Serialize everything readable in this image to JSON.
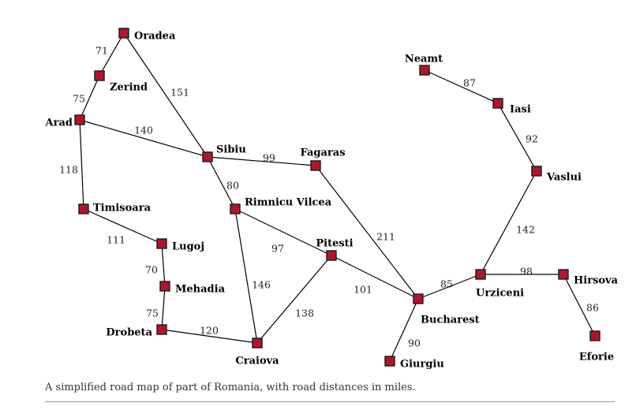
{
  "caption": "A simplified road map of part of Romania, with road distances in miles.",
  "colors": {
    "city": "#b0152a",
    "road": "#000000"
  },
  "cities": [
    {
      "id": "oradea",
      "name": "Oradea"
    },
    {
      "id": "zerind",
      "name": "Zerind"
    },
    {
      "id": "arad",
      "name": "Arad"
    },
    {
      "id": "timisoara",
      "name": "Timisoara"
    },
    {
      "id": "lugoj",
      "name": "Lugoj"
    },
    {
      "id": "mehadia",
      "name": "Mehadia"
    },
    {
      "id": "drobeta",
      "name": "Drobeta"
    },
    {
      "id": "craiova",
      "name": "Craiova"
    },
    {
      "id": "sibiu",
      "name": "Sibiu"
    },
    {
      "id": "rimnicu-vilcea",
      "name": "Rimnicu Vilcea"
    },
    {
      "id": "fagaras",
      "name": "Fagaras"
    },
    {
      "id": "pitesti",
      "name": "Pitesti"
    },
    {
      "id": "bucharest",
      "name": "Bucharest"
    },
    {
      "id": "giurgiu",
      "name": "Giurgiu"
    },
    {
      "id": "urziceni",
      "name": "Urziceni"
    },
    {
      "id": "hirsova",
      "name": "Hirsova"
    },
    {
      "id": "eforie",
      "name": "Eforie"
    },
    {
      "id": "vaslui",
      "name": "Vaslui"
    },
    {
      "id": "iasi",
      "name": "Iasi"
    },
    {
      "id": "neamt",
      "name": "Neamt"
    }
  ],
  "roads": [
    {
      "from": "Oradea",
      "to": "Zerind",
      "distance": "71"
    },
    {
      "from": "Zerind",
      "to": "Arad",
      "distance": "75"
    },
    {
      "from": "Oradea",
      "to": "Sibiu",
      "distance": "151"
    },
    {
      "from": "Arad",
      "to": "Sibiu",
      "distance": "140"
    },
    {
      "from": "Arad",
      "to": "Timisoara",
      "distance": "118"
    },
    {
      "from": "Timisoara",
      "to": "Lugoj",
      "distance": "111"
    },
    {
      "from": "Lugoj",
      "to": "Mehadia",
      "distance": "70"
    },
    {
      "from": "Mehadia",
      "to": "Drobeta",
      "distance": "75"
    },
    {
      "from": "Drobeta",
      "to": "Craiova",
      "distance": "120"
    },
    {
      "from": "Sibiu",
      "to": "Fagaras",
      "distance": "99"
    },
    {
      "from": "Sibiu",
      "to": "Rimnicu Vilcea",
      "distance": "80"
    },
    {
      "from": "Rimnicu Vilcea",
      "to": "Pitesti",
      "distance": "97"
    },
    {
      "from": "Rimnicu Vilcea",
      "to": "Craiova",
      "distance": "146"
    },
    {
      "from": "Craiova",
      "to": "Pitesti",
      "distance": "138"
    },
    {
      "from": "Fagaras",
      "to": "Bucharest",
      "distance": "211"
    },
    {
      "from": "Pitesti",
      "to": "Bucharest",
      "distance": "101"
    },
    {
      "from": "Bucharest",
      "to": "Giurgiu",
      "distance": "90"
    },
    {
      "from": "Bucharest",
      "to": "Urziceni",
      "distance": "85"
    },
    {
      "from": "Urziceni",
      "to": "Hirsova",
      "distance": "98"
    },
    {
      "from": "Hirsova",
      "to": "Eforie",
      "distance": "86"
    },
    {
      "from": "Urziceni",
      "to": "Vaslui",
      "distance": "142"
    },
    {
      "from": "Vaslui",
      "to": "Iasi",
      "distance": "92"
    },
    {
      "from": "Iasi",
      "to": "Neamt",
      "distance": "87"
    }
  ]
}
